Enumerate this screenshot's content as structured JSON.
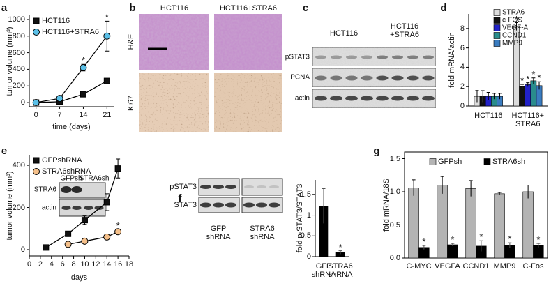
{
  "chart_data": [
    {
      "panel": "a",
      "type": "line",
      "x": [
        0,
        7,
        14,
        21
      ],
      "xlim": [
        -2,
        23
      ],
      "xticks": [
        0,
        7,
        14,
        21
      ],
      "ylim": [
        -50,
        1050
      ],
      "yticks": [
        0,
        200,
        400,
        600,
        800,
        1000
      ],
      "x_label": "time (days)",
      "y_label": "tumor volume (mm³)",
      "legend": "upper left",
      "series": [
        {
          "name": "HCT116",
          "color": "#111111",
          "marker": "square",
          "values": [
            0,
            10,
            100,
            260
          ],
          "errors": [
            0,
            5,
            15,
            30
          ]
        },
        {
          "name": "HCT116+STRA6",
          "color": "#5bc0e8",
          "marker": "circle",
          "values": [
            0,
            50,
            420,
            800
          ],
          "errors": [
            0,
            8,
            40,
            180
          ],
          "significance": [
            null,
            null,
            "*",
            "*"
          ]
        }
      ]
    },
    {
      "panel": "d",
      "type": "bar",
      "categories": [
        "HCT116",
        "HCT116+\nSTRA6"
      ],
      "ylim": [
        0,
        9.5
      ],
      "yticks": [
        0,
        2,
        4,
        6,
        8
      ],
      "y_label": "fold mRNA/actin",
      "legend": "upper left",
      "series": [
        {
          "name": "STRA6",
          "color": "#dcdcdc",
          "values": [
            1,
            8.2
          ],
          "errors": [
            0.6,
            0.4
          ],
          "significance": [
            null,
            "*"
          ]
        },
        {
          "name": "c-FOS",
          "color": "#111111",
          "values": [
            1,
            2.0
          ],
          "errors": [
            0.6,
            0.2
          ],
          "significance": [
            null,
            "*"
          ]
        },
        {
          "name": "VEGF-A",
          "color": "#2222c8",
          "values": [
            1,
            2.2
          ],
          "errors": [
            0.4,
            0.2
          ],
          "significance": [
            null,
            "*"
          ]
        },
        {
          "name": "CCND1",
          "color": "#2a8c8c",
          "values": [
            1,
            2.6
          ],
          "errors": [
            0.3,
            0.3
          ],
          "significance": [
            null,
            "*"
          ]
        },
        {
          "name": "MMP9",
          "color": "#3a7cc0",
          "values": [
            1,
            2.1
          ],
          "errors": [
            0.3,
            0.4
          ],
          "significance": [
            null,
            "*"
          ]
        }
      ]
    },
    {
      "panel": "e",
      "type": "line",
      "x": [
        3,
        7,
        10,
        14,
        16
      ],
      "xlim": [
        0,
        18
      ],
      "xticks": [
        0,
        2,
        4,
        6,
        8,
        10,
        12,
        14,
        16,
        18
      ],
      "ylim": [
        -30,
        450
      ],
      "yticks": [
        0,
        200,
        400
      ],
      "x_label": "days",
      "y_label": "tumor volume (mm³)",
      "legend": "upper left",
      "series": [
        {
          "name": "GFPshRNA",
          "color": "#111111",
          "marker": "square",
          "values": [
            10,
            75,
            140,
            225,
            385
          ],
          "errors": [
            3,
            10,
            20,
            40,
            45
          ]
        },
        {
          "name": "STRA6shRNA",
          "color": "#f5c08a",
          "marker": "circle",
          "values": [
            null,
            25,
            40,
            60,
            85
          ],
          "errors": [
            null,
            5,
            8,
            10,
            12
          ],
          "significance": [
            null,
            null,
            null,
            null,
            "*"
          ]
        }
      ]
    },
    {
      "type": "bar",
      "categories": [
        "GFP\nshRNA",
        "STRA6\nshRNA"
      ],
      "values": [
        1.22,
        0.1
      ],
      "errors": [
        0.42,
        0.04
      ],
      "significance": [
        null,
        "*"
      ],
      "color": "#000000",
      "ylim": [
        0,
        1.85
      ],
      "yticks": [
        0,
        0.5,
        1,
        1.5
      ],
      "y_label": "fold p-STAT3/STAT3"
    },
    {
      "panel": "g",
      "type": "bar",
      "categories": [
        "C-MYC",
        "VEGFA",
        "CCND1",
        "MMP9",
        "C-Fos"
      ],
      "ylim": [
        0,
        1.6
      ],
      "yticks": [
        {
          "value": 0,
          "label": "0.0"
        },
        0.5,
        {
          "value": 1,
          "label": "1.0"
        },
        1.5
      ],
      "y_label": "fold mRNA/18S",
      "legend": "upper center",
      "series": [
        {
          "name": "GFPsh",
          "color": "#b4b4b4",
          "values": [
            1.06,
            1.1,
            1.05,
            0.97,
            1.0
          ],
          "errors": [
            0.12,
            0.13,
            0.12,
            0.02,
            0.1
          ]
        },
        {
          "name": "STRA6sh",
          "color": "#000000",
          "values": [
            0.16,
            0.2,
            0.18,
            0.19,
            0.19
          ],
          "errors": [
            0.03,
            0.02,
            0.08,
            0.04,
            0.03
          ],
          "significance": [
            "*",
            "*",
            "*",
            "*",
            "*"
          ]
        }
      ]
    }
  ],
  "panel_b": {
    "panel": "b",
    "columns": [
      "HCT116",
      "HCT116+STRA6"
    ],
    "rows": [
      "H&E",
      "Ki67"
    ]
  },
  "panel_c": {
    "panel": "c",
    "groups": [
      "HCT116",
      "HCT116\n+STRA6"
    ],
    "rows": [
      "pSTAT3",
      "PCNA",
      "actin"
    ]
  },
  "inset_e": {
    "lanes": [
      "GFPsh",
      "STRA6sh"
    ],
    "rows": [
      "STRA6",
      "actin"
    ]
  },
  "blot_f": {
    "panel": "f",
    "rows": [
      "pSTAT3",
      "STAT3"
    ],
    "groups": [
      "GFP\nshRNA",
      "STRA6\nshRNA"
    ]
  }
}
